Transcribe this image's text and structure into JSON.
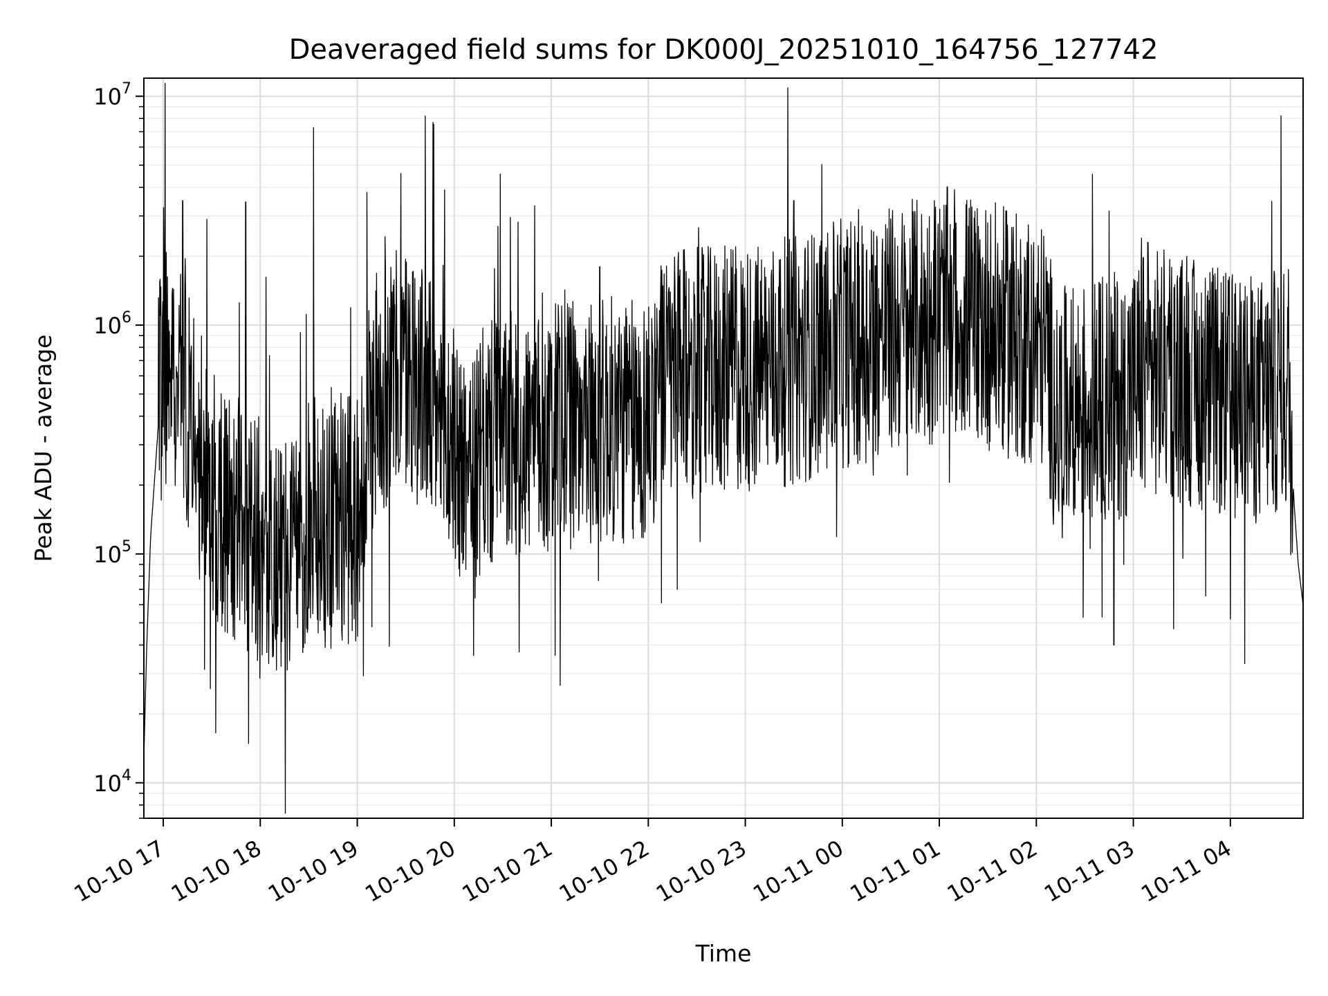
{
  "chart_data": {
    "type": "line",
    "title": "Deaveraged field sums for DK000J_20251010_164756_127742",
    "xlabel": "Time",
    "ylabel": "Peak ADU - average",
    "yscale": "log",
    "ylim": [
      7000,
      12000000
    ],
    "xlim_hours": [
      16.8,
      28.75
    ],
    "grid": true,
    "x_ticks": [
      {
        "hour": 17,
        "label": "10-10 17"
      },
      {
        "hour": 18,
        "label": "10-10 18"
      },
      {
        "hour": 19,
        "label": "10-10 19"
      },
      {
        "hour": 20,
        "label": "10-10 20"
      },
      {
        "hour": 21,
        "label": "10-10 21"
      },
      {
        "hour": 22,
        "label": "10-10 22"
      },
      {
        "hour": 23,
        "label": "10-10 23"
      },
      {
        "hour": 24,
        "label": "10-11 00"
      },
      {
        "hour": 25,
        "label": "10-11 01"
      },
      {
        "hour": 26,
        "label": "10-11 02"
      },
      {
        "hour": 27,
        "label": "10-11 03"
      },
      {
        "hour": 28,
        "label": "10-11 04"
      }
    ],
    "y_ticks": [
      {
        "exp": 4,
        "base": "10",
        "sup": "4"
      },
      {
        "exp": 5,
        "base": "10",
        "sup": "5"
      },
      {
        "exp": 6,
        "base": "10",
        "sup": "6"
      },
      {
        "exp": 7,
        "base": "10",
        "sup": "7"
      }
    ],
    "series": [
      {
        "name": "Peak ADU - average",
        "color": "#000000",
        "x_hours": [
          16.8,
          16.83,
          16.87,
          16.93,
          17.0,
          17.1,
          17.2,
          17.3,
          17.4,
          17.5,
          17.7,
          17.9,
          18.1,
          18.3,
          18.5,
          18.7,
          18.9,
          19.0,
          19.1,
          19.2,
          19.3,
          19.4,
          19.5,
          19.6,
          19.7,
          19.8,
          19.9,
          20.0,
          20.1,
          20.2,
          20.3,
          20.5,
          20.7,
          20.9,
          21.1,
          21.3,
          21.5,
          21.7,
          21.9,
          22.0,
          22.1,
          22.3,
          22.5,
          22.7,
          22.9,
          23.1,
          23.3,
          23.5,
          23.7,
          23.9,
          24.1,
          24.3,
          24.5,
          24.7,
          24.9,
          25.1,
          25.3,
          25.5,
          25.7,
          25.9,
          26.1,
          26.2,
          26.3,
          26.5,
          26.7,
          26.9,
          27.1,
          27.3,
          27.5,
          27.7,
          27.9,
          28.1,
          28.3,
          28.5,
          28.6,
          28.66,
          28.7,
          28.75
        ],
        "values": [
          13000,
          40000,
          120000,
          280000,
          750000,
          700000,
          550000,
          350000,
          250000,
          180000,
          140000,
          130000,
          100000,
          90000,
          130000,
          160000,
          140000,
          140000,
          350000,
          500000,
          550000,
          600000,
          650000,
          600000,
          500000,
          420000,
          320000,
          300000,
          230000,
          200000,
          280000,
          320000,
          330000,
          340000,
          360000,
          370000,
          380000,
          380000,
          360000,
          400000,
          550000,
          600000,
          620000,
          630000,
          640000,
          650000,
          680000,
          700000,
          750000,
          800000,
          850000,
          900000,
          950000,
          1000000,
          1050000,
          1150000,
          1100000,
          1000000,
          920000,
          850000,
          800000,
          400000,
          420000,
          450000,
          480000,
          500000,
          600000,
          620000,
          580000,
          540000,
          500000,
          480000,
          460000,
          520000,
          500000,
          160000,
          90000,
          60000
        ],
        "peaks": [
          {
            "hour": 17.2,
            "value": 3500000
          },
          {
            "hour": 17.45,
            "value": 2900000
          },
          {
            "hour": 17.85,
            "value": 3450000
          },
          {
            "hour": 18.55,
            "value": 7300000
          },
          {
            "hour": 19.1,
            "value": 3800000
          },
          {
            "hour": 19.45,
            "value": 4600000
          },
          {
            "hour": 19.7,
            "value": 8200000
          },
          {
            "hour": 19.78,
            "value": 7700000
          },
          {
            "hour": 19.9,
            "value": 3900000
          },
          {
            "hour": 20.45,
            "value": 2700000
          },
          {
            "hour": 21.5,
            "value": 1800000
          },
          {
            "hour": 22.3,
            "value": 2100000
          },
          {
            "hour": 22.9,
            "value": 2200000
          },
          {
            "hour": 23.5,
            "value": 3500000
          },
          {
            "hour": 24.3,
            "value": 2600000
          },
          {
            "hour": 24.95,
            "value": 3500000
          },
          {
            "hour": 25.3,
            "value": 2700000
          },
          {
            "hour": 25.5,
            "value": 2800000
          },
          {
            "hour": 26.75,
            "value": 3150000
          },
          {
            "hour": 27.15,
            "value": 2300000
          },
          {
            "hour": 27.55,
            "value": 2000000
          },
          {
            "hour": 28.0,
            "value": 2350000
          },
          {
            "hour": 28.6,
            "value": 1750000
          }
        ],
        "dips": [
          {
            "hour": 17.3,
            "value": 160000
          },
          {
            "hour": 18.25,
            "value": 43000
          },
          {
            "hour": 19.15,
            "value": 48000
          },
          {
            "hour": 20.2,
            "value": 36000
          },
          {
            "hour": 22.3,
            "value": 70000
          },
          {
            "hour": 26.8,
            "value": 40000
          },
          {
            "hour": 28.0,
            "value": 52000
          },
          {
            "hour": 28.75,
            "value": 52000
          }
        ]
      }
    ]
  }
}
